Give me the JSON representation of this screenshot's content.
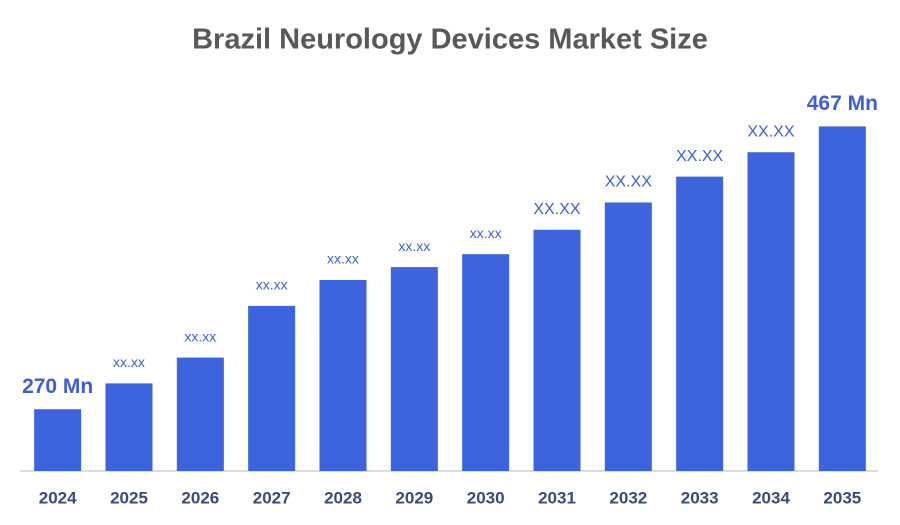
{
  "chart_data": {
    "type": "bar",
    "title": "Brazil Neurology Devices Market Size",
    "categories": [
      "2024",
      "2025",
      "2026",
      "2027",
      "2028",
      "2029",
      "2030",
      "2031",
      "2032",
      "2033",
      "2034",
      "2035"
    ],
    "values": [
      270,
      288,
      306,
      342,
      360,
      369,
      378,
      395,
      414,
      432,
      449,
      467
    ],
    "value_labels": [
      "270 Mn",
      "xx.xx",
      "xx.xx",
      "xx.xx",
      "xx.xx",
      "xx.xx",
      "xx.xx",
      "XX.XX",
      "XX.XX",
      "XX.XX",
      "XX.XX",
      "467 Mn"
    ],
    "color": "#3d63dd",
    "ylim": [
      227,
      500
    ]
  }
}
